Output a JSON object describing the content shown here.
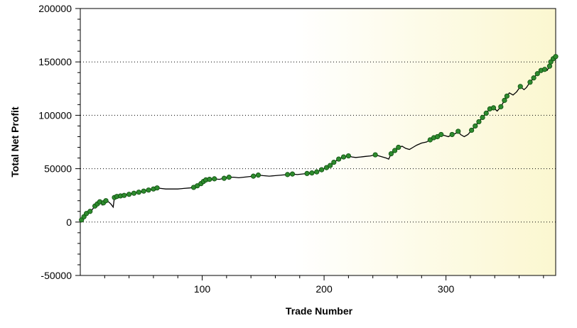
{
  "chart_data": {
    "type": "line",
    "title": "",
    "xlabel": "Trade Number",
    "ylabel": "Total Net Profit",
    "xlim": [
      0,
      390
    ],
    "ylim": [
      -50000,
      200000
    ],
    "x_ticks": [
      100,
      200,
      300
    ],
    "y_ticks": [
      -50000,
      0,
      50000,
      100000,
      150000,
      200000
    ],
    "grid": "horizontal-dotted",
    "background": "gradient white to light-yellow",
    "line_color": "#000000",
    "marker_color": "#2e8b2e",
    "series": [
      {
        "points": [
          [
            1,
            2000
          ],
          [
            3,
            5000
          ],
          [
            5,
            8000
          ],
          [
            8,
            10000
          ],
          [
            10,
            12000
          ],
          [
            12,
            15000
          ],
          [
            14,
            17000
          ],
          [
            16,
            19000
          ],
          [
            18,
            16000
          ],
          [
            19,
            18000
          ],
          [
            21,
            20000
          ],
          [
            23,
            19000
          ],
          [
            25,
            17000
          ],
          [
            27,
            14000
          ],
          [
            28,
            23000
          ],
          [
            30,
            24000
          ],
          [
            33,
            24500
          ],
          [
            36,
            25000
          ],
          [
            40,
            26000
          ],
          [
            44,
            27000
          ],
          [
            48,
            28000
          ],
          [
            52,
            29000
          ],
          [
            56,
            30000
          ],
          [
            60,
            31000
          ],
          [
            63,
            32000
          ],
          [
            66,
            31500
          ],
          [
            70,
            31000
          ],
          [
            75,
            31000
          ],
          [
            80,
            31000
          ],
          [
            85,
            31500
          ],
          [
            90,
            32000
          ],
          [
            93,
            32500
          ],
          [
            96,
            34000
          ],
          [
            99,
            36000
          ],
          [
            101,
            38000
          ],
          [
            103,
            39500
          ],
          [
            106,
            40000
          ],
          [
            110,
            40500
          ],
          [
            114,
            40000
          ],
          [
            118,
            41000
          ],
          [
            122,
            42000
          ],
          [
            126,
            42000
          ],
          [
            130,
            41500
          ],
          [
            134,
            42000
          ],
          [
            138,
            42500
          ],
          [
            142,
            43000
          ],
          [
            146,
            44000
          ],
          [
            150,
            43500
          ],
          [
            155,
            43000
          ],
          [
            160,
            43500
          ],
          [
            165,
            44000
          ],
          [
            170,
            44500
          ],
          [
            174,
            45000
          ],
          [
            178,
            44500
          ],
          [
            182,
            45000
          ],
          [
            186,
            45500
          ],
          [
            190,
            46000
          ],
          [
            194,
            47000
          ],
          [
            198,
            49000
          ],
          [
            202,
            51000
          ],
          [
            205,
            53000
          ],
          [
            208,
            56000
          ],
          [
            212,
            59000
          ],
          [
            216,
            61000
          ],
          [
            220,
            62000
          ],
          [
            223,
            61000
          ],
          [
            226,
            60500
          ],
          [
            230,
            61000
          ],
          [
            234,
            61500
          ],
          [
            238,
            62000
          ],
          [
            242,
            63000
          ],
          [
            245,
            62000
          ],
          [
            248,
            61000
          ],
          [
            251,
            60000
          ],
          [
            253,
            59000
          ],
          [
            255,
            64000
          ],
          [
            258,
            67000
          ],
          [
            261,
            70000
          ],
          [
            264,
            71000
          ],
          [
            267,
            69000
          ],
          [
            270,
            68000
          ],
          [
            273,
            70000
          ],
          [
            276,
            72000
          ],
          [
            280,
            74000
          ],
          [
            284,
            75000
          ],
          [
            287,
            77000
          ],
          [
            290,
            79000
          ],
          [
            293,
            80000
          ],
          [
            296,
            82000
          ],
          [
            299,
            81000
          ],
          [
            302,
            80000
          ],
          [
            305,
            82000
          ],
          [
            308,
            83000
          ],
          [
            310,
            85000
          ],
          [
            312,
            82000
          ],
          [
            315,
            80000
          ],
          [
            318,
            82000
          ],
          [
            321,
            86000
          ],
          [
            324,
            90000
          ],
          [
            327,
            94000
          ],
          [
            330,
            98000
          ],
          [
            333,
            102000
          ],
          [
            336,
            106000
          ],
          [
            339,
            107000
          ],
          [
            342,
            104000
          ],
          [
            345,
            108000
          ],
          [
            348,
            114000
          ],
          [
            350,
            118000
          ],
          [
            352,
            121000
          ],
          [
            355,
            119000
          ],
          [
            358,
            122000
          ],
          [
            361,
            127000
          ],
          [
            364,
            124000
          ],
          [
            366,
            126000
          ],
          [
            369,
            131000
          ],
          [
            372,
            135000
          ],
          [
            375,
            139000
          ],
          [
            378,
            142000
          ],
          [
            381,
            143000
          ],
          [
            383,
            142000
          ],
          [
            385,
            146000
          ],
          [
            386,
            150000
          ],
          [
            388,
            153000
          ],
          [
            390,
            155000
          ]
        ],
        "markers": [
          1,
          3,
          5,
          8,
          12,
          14,
          16,
          19,
          21,
          28,
          30,
          33,
          36,
          40,
          44,
          48,
          52,
          56,
          60,
          63,
          93,
          96,
          99,
          101,
          103,
          106,
          110,
          118,
          122,
          142,
          146,
          170,
          174,
          186,
          190,
          194,
          198,
          202,
          205,
          208,
          212,
          216,
          220,
          242,
          255,
          258,
          261,
          287,
          290,
          293,
          296,
          305,
          310,
          321,
          324,
          327,
          330,
          333,
          336,
          339,
          345,
          348,
          350,
          361,
          369,
          372,
          375,
          378,
          381,
          385,
          386,
          388,
          390
        ]
      }
    ]
  }
}
